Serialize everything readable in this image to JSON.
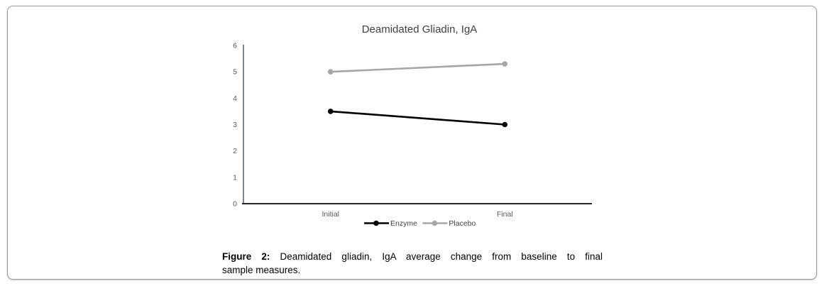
{
  "frame": {
    "border_color": "#9b9b9b",
    "background": "#ffffff"
  },
  "chart_data": {
    "type": "line",
    "title": "Deamidated Gliadin, IgA",
    "categories": [
      "Initial",
      "Final"
    ],
    "series": [
      {
        "name": "Enzyme",
        "values": [
          3.5,
          3.0
        ],
        "color": "#000000",
        "marker": "circle"
      },
      {
        "name": "Placebo",
        "values": [
          5.0,
          5.3
        ],
        "color": "#a6a6a6",
        "marker": "circle"
      }
    ],
    "ylim": [
      0,
      6
    ],
    "yticks": [
      0,
      1,
      2,
      3,
      4,
      5,
      6
    ],
    "xlabel": "",
    "ylabel": "",
    "grid": false,
    "legend_position": "bottom",
    "title_color": "#404040",
    "tick_color": "#595959",
    "legend_text_color": "#404040",
    "y_axis_color": "#44546a",
    "x_axis_color": "#262626"
  },
  "caption": {
    "label": "Figure 2:",
    "line1": "Deamidated gliadin, IgA average change from baseline to final",
    "line2": "sample measures."
  }
}
